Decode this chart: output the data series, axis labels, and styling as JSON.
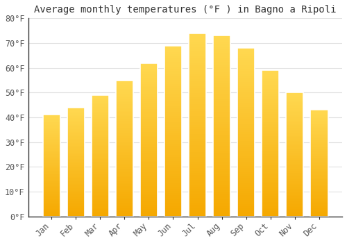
{
  "title": "Average monthly temperatures (°F ) in Bagno a Ripoli",
  "months": [
    "Jan",
    "Feb",
    "Mar",
    "Apr",
    "May",
    "Jun",
    "Jul",
    "Aug",
    "Sep",
    "Oct",
    "Nov",
    "Dec"
  ],
  "values": [
    41,
    44,
    49,
    55,
    62,
    69,
    74,
    73,
    68,
    59,
    50,
    43
  ],
  "bar_color_bottom": "#F5A800",
  "bar_color_top": "#FFD850",
  "background_color": "#FFFFFF",
  "plot_bg_color": "#FFFFFF",
  "grid_color": "#E0E0E0",
  "ylim": [
    0,
    80
  ],
  "yticks": [
    0,
    10,
    20,
    30,
    40,
    50,
    60,
    70,
    80
  ],
  "ytick_labels": [
    "0°F",
    "10°F",
    "20°F",
    "30°F",
    "40°F",
    "50°F",
    "60°F",
    "70°F",
    "80°F"
  ],
  "title_fontsize": 10,
  "tick_fontsize": 8.5,
  "font_family": "monospace",
  "bar_width": 0.72
}
